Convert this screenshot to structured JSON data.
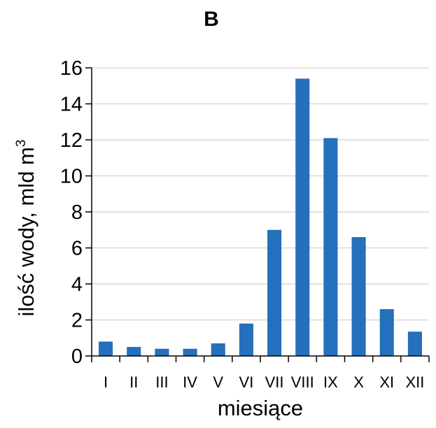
{
  "chart_data": {
    "type": "bar",
    "title": "B",
    "xlabel": "miesiące",
    "ylabel_text": "ilość wody, mld m",
    "ylabel_superscript": "3",
    "categories": [
      "I",
      "II",
      "III",
      "IV",
      "V",
      "VI",
      "VII",
      "VIII",
      "IX",
      "X",
      "XI",
      "XII"
    ],
    "values": [
      0.8,
      0.5,
      0.4,
      0.4,
      0.7,
      1.8,
      7.0,
      15.4,
      12.1,
      6.6,
      2.6,
      1.35
    ],
    "ylim": [
      0,
      16
    ],
    "yticks": [
      0,
      2,
      4,
      6,
      8,
      10,
      12,
      14,
      16
    ],
    "grid": true,
    "bar_color": "#2470BC",
    "grid_color": "#D9D9D9",
    "axis_color": "#000000"
  }
}
